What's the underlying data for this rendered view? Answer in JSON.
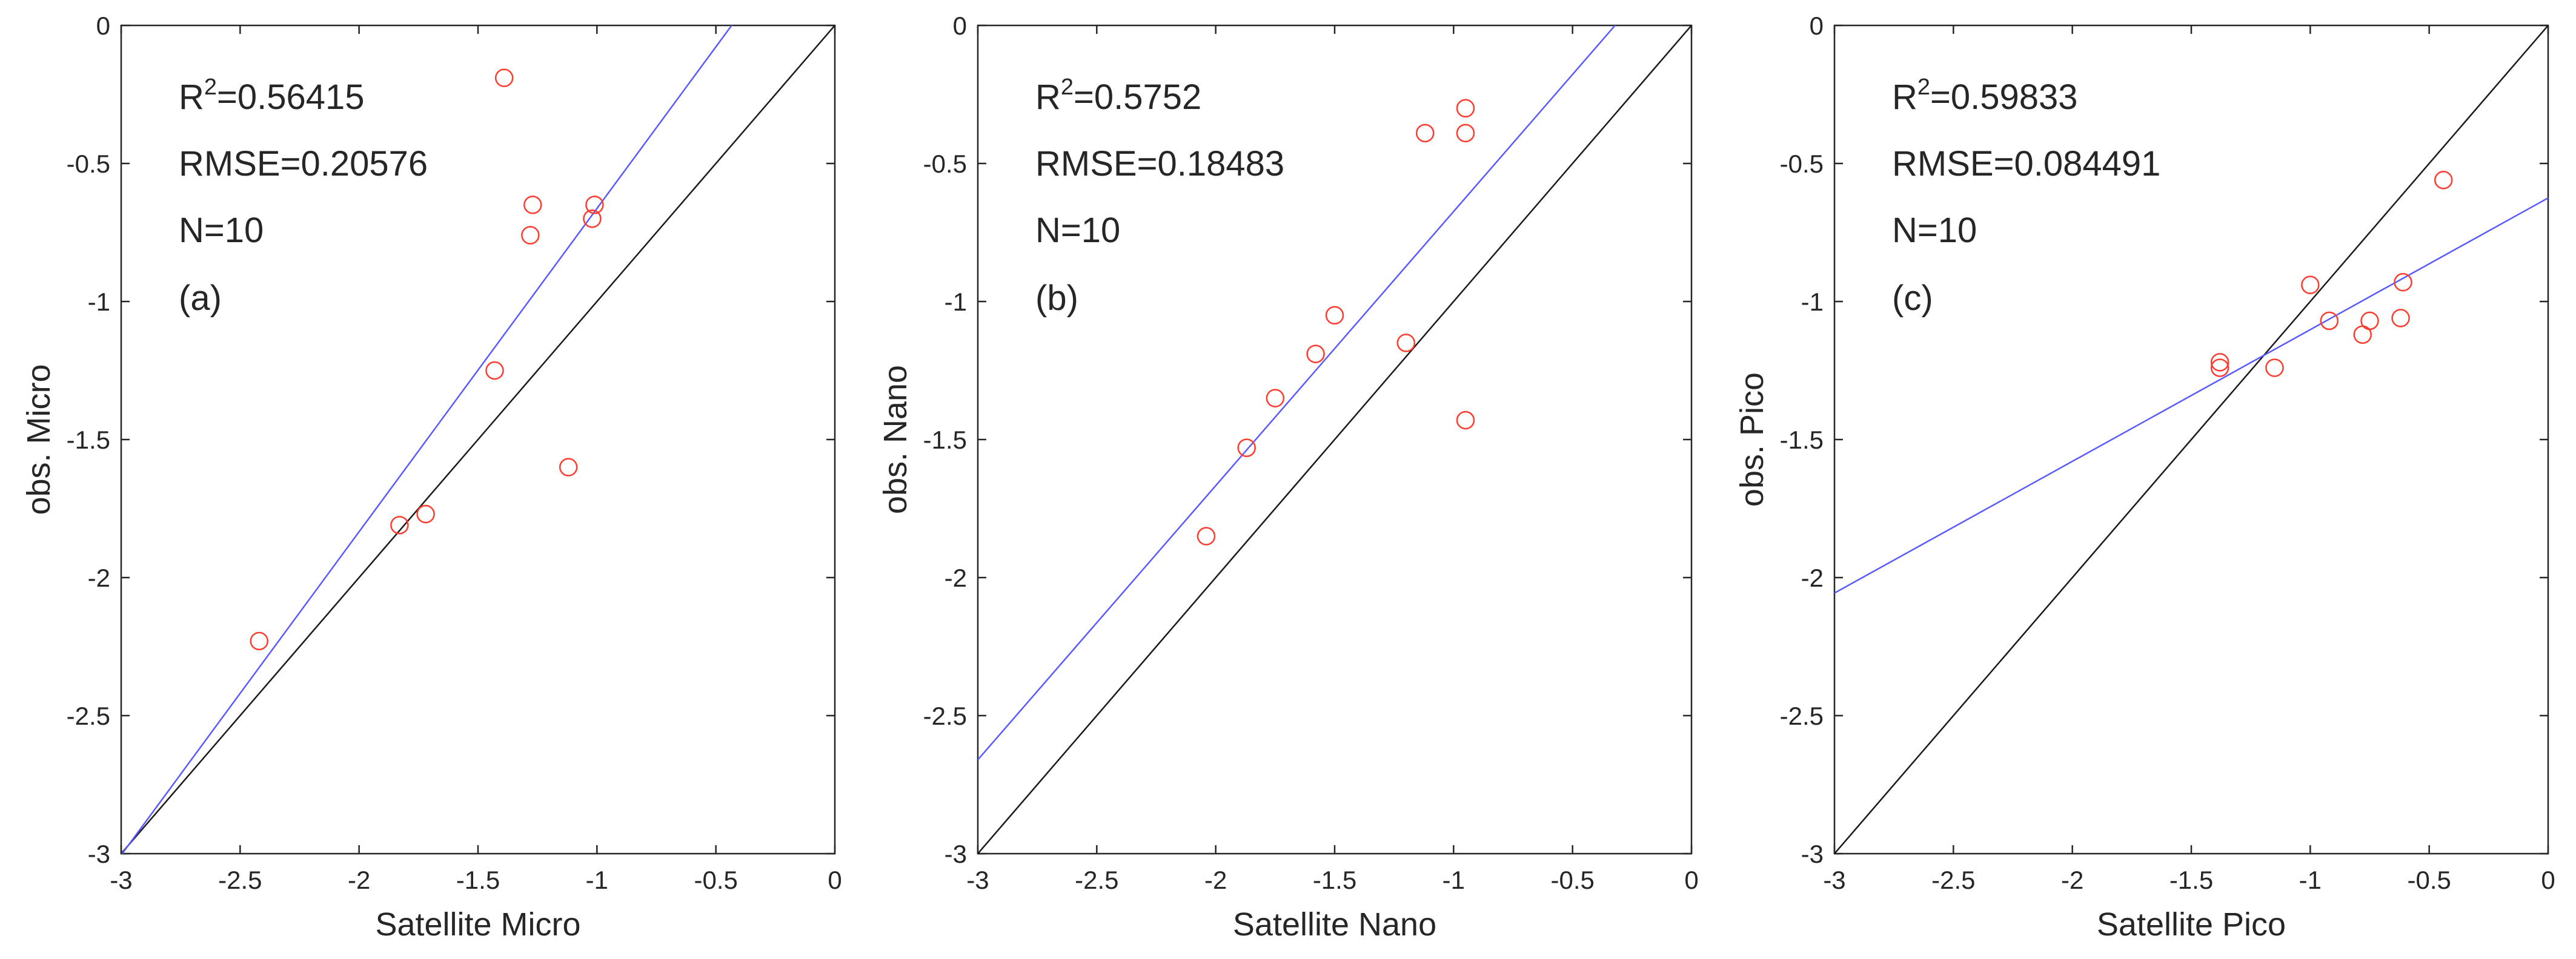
{
  "chart_data": [
    {
      "type": "scatter",
      "panel_label": "(a)",
      "xlabel": "Satellite Micro",
      "ylabel": "obs. Micro",
      "xlim": [
        -3,
        0
      ],
      "ylim": [
        -3,
        0
      ],
      "xticks": [
        -3,
        -2.5,
        -2,
        -1.5,
        -1,
        -0.5,
        0
      ],
      "yticks": [
        -3,
        -2.5,
        -2,
        -1.5,
        -1,
        -0.5,
        0
      ],
      "xtick_labels": [
        "-3",
        "-2.5",
        "-2",
        "-1.5",
        "-1",
        "-0.5",
        "0"
      ],
      "ytick_labels": [
        "-3",
        "-2.5",
        "-2",
        "-1.5",
        "-1",
        "-0.5",
        "0"
      ],
      "stats": {
        "r2_prefix": "R",
        "r2_sup": "2",
        "r2_value": "=0.56415",
        "rmse": "RMSE=0.20576",
        "n": "N=10"
      },
      "points": [
        {
          "x": -2.42,
          "y": -2.23
        },
        {
          "x": -1.83,
          "y": -1.81
        },
        {
          "x": -1.72,
          "y": -1.77
        },
        {
          "x": -1.43,
          "y": -1.25
        },
        {
          "x": -1.39,
          "y": -0.19
        },
        {
          "x": -1.28,
          "y": -0.76
        },
        {
          "x": -1.27,
          "y": -0.65
        },
        {
          "x": -1.12,
          "y": -1.6
        },
        {
          "x": -1.02,
          "y": -0.7
        },
        {
          "x": -1.01,
          "y": -0.65
        }
      ],
      "fit_line": {
        "slope": 1.171,
        "intercept": 0.508
      },
      "one_to_one": true,
      "colors": {
        "points": "#ff3b30",
        "fit": "#5a5aff",
        "identity": "#1a1a1a"
      }
    },
    {
      "type": "scatter",
      "panel_label": "(b)",
      "xlabel": "Satellite Nano",
      "ylabel": "obs. Nano",
      "xlim": [
        -3,
        0
      ],
      "ylim": [
        -3,
        0
      ],
      "xticks": [
        -3,
        -2.5,
        -2,
        -1.5,
        -1,
        -0.5,
        0
      ],
      "yticks": [
        -3,
        -2.5,
        -2,
        -1.5,
        -1,
        -0.5,
        0
      ],
      "xtick_labels": [
        "-3",
        "-2.5",
        "-2",
        "-1.5",
        "-1",
        "-0.5",
        "0"
      ],
      "ytick_labels": [
        "-3",
        "-2.5",
        "-2",
        "-1.5",
        "-1",
        "-0.5",
        "0"
      ],
      "stats": {
        "r2_prefix": "R",
        "r2_sup": "2",
        "r2_value": "=0.5752",
        "rmse": "RMSE=0.18483",
        "n": "N=10"
      },
      "points": [
        {
          "x": -2.04,
          "y": -1.85
        },
        {
          "x": -1.87,
          "y": -1.53
        },
        {
          "x": -1.75,
          "y": -1.35
        },
        {
          "x": -1.58,
          "y": -1.19
        },
        {
          "x": -1.5,
          "y": -1.05
        },
        {
          "x": -1.2,
          "y": -1.15
        },
        {
          "x": -1.12,
          "y": -0.39
        },
        {
          "x": -0.95,
          "y": -0.3
        },
        {
          "x": -0.95,
          "y": -0.39
        },
        {
          "x": -0.95,
          "y": -1.43
        }
      ],
      "fit_line": {
        "slope": 0.993,
        "intercept": 0.319
      },
      "one_to_one": true,
      "colors": {
        "points": "#ff3b30",
        "fit": "#5a5aff",
        "identity": "#1a1a1a"
      }
    },
    {
      "type": "scatter",
      "panel_label": "(c)",
      "xlabel": "Satellite Pico",
      "ylabel": "obs. Pico",
      "xlim": [
        -3,
        0
      ],
      "ylim": [
        -3,
        0
      ],
      "xticks": [
        -3,
        -2.5,
        -2,
        -1.5,
        -1,
        -0.5,
        0
      ],
      "yticks": [
        -3,
        -2.5,
        -2,
        -1.5,
        -1,
        -0.5,
        0
      ],
      "xtick_labels": [
        "-3",
        "-2.5",
        "-2",
        "-1.5",
        "-1",
        "-0.5",
        "0"
      ],
      "ytick_labels": [
        "-3",
        "-2.5",
        "-2",
        "-1.5",
        "-1",
        "-0.5",
        "0"
      ],
      "stats": {
        "r2_prefix": "R",
        "r2_sup": "2",
        "r2_value": "=0.59833",
        "rmse": "RMSE=0.084491",
        "n": "N=10"
      },
      "points": [
        {
          "x": -1.38,
          "y": -1.22
        },
        {
          "x": -1.38,
          "y": -1.24
        },
        {
          "x": -1.15,
          "y": -1.24
        },
        {
          "x": -1.0,
          "y": -0.94
        },
        {
          "x": -0.92,
          "y": -1.07
        },
        {
          "x": -0.78,
          "y": -1.12
        },
        {
          "x": -0.75,
          "y": -1.07
        },
        {
          "x": -0.62,
          "y": -1.06
        },
        {
          "x": -0.61,
          "y": -0.93
        },
        {
          "x": -0.44,
          "y": -0.56
        }
      ],
      "fit_line": {
        "slope": 0.477,
        "intercept": -0.625
      },
      "one_to_one": true,
      "colors": {
        "points": "#ff3b30",
        "fit": "#5a5aff",
        "identity": "#1a1a1a"
      }
    }
  ]
}
